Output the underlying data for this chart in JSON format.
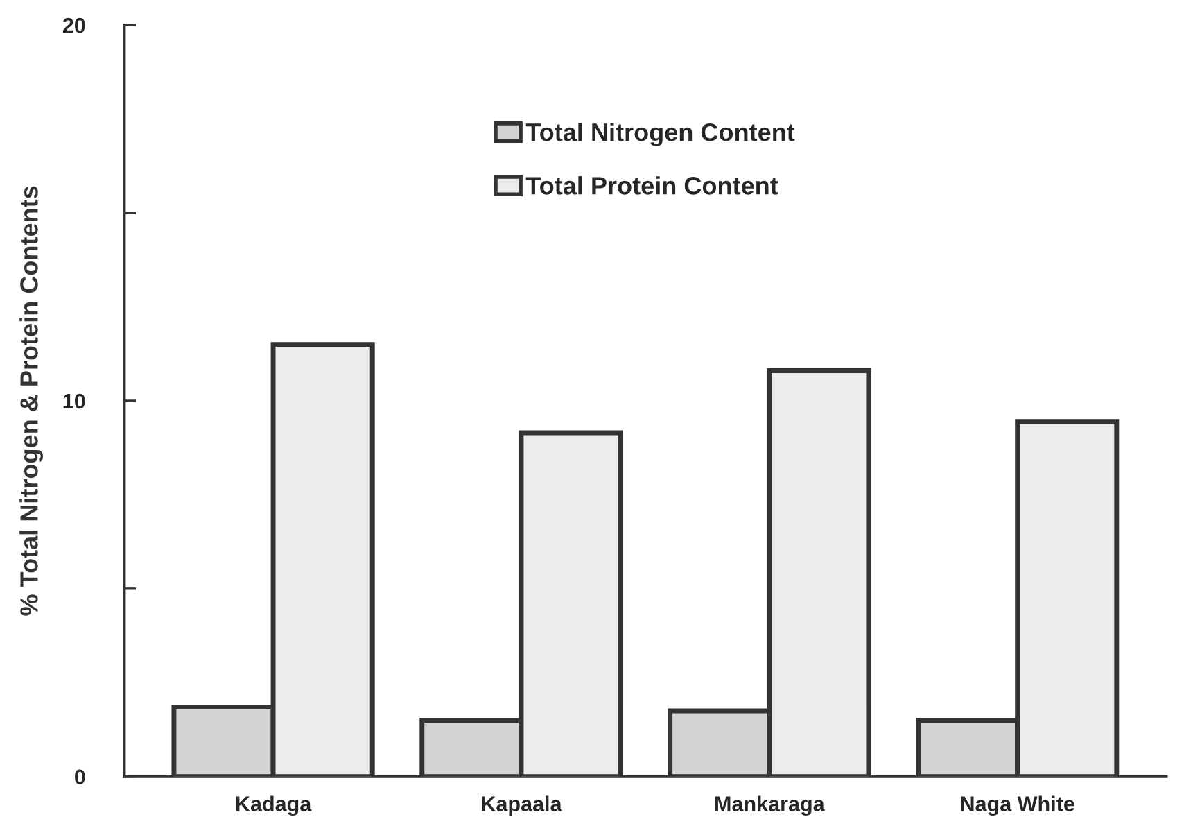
{
  "chart_data": {
    "type": "bar",
    "ylabel": "% Total Nitrogen & Protein Contents",
    "categories": [
      "Kadaga",
      "Kapaala",
      "Mankaraga",
      "Naga White"
    ],
    "series": [
      {
        "name": "Total Nitrogen Content",
        "color": "#d4d4d4",
        "values": [
          1.85,
          1.5,
          1.75,
          1.5
        ]
      },
      {
        "name": "Total Protein Content",
        "color": "#ececec",
        "values": [
          11.5,
          9.15,
          10.8,
          9.45
        ]
      }
    ],
    "ylim": [
      0,
      20
    ],
    "yticks": [
      0,
      {
        "value": 5,
        "label": null
      },
      10,
      {
        "value": 15,
        "label": null
      },
      20
    ],
    "grid": false,
    "legend": "top"
  }
}
